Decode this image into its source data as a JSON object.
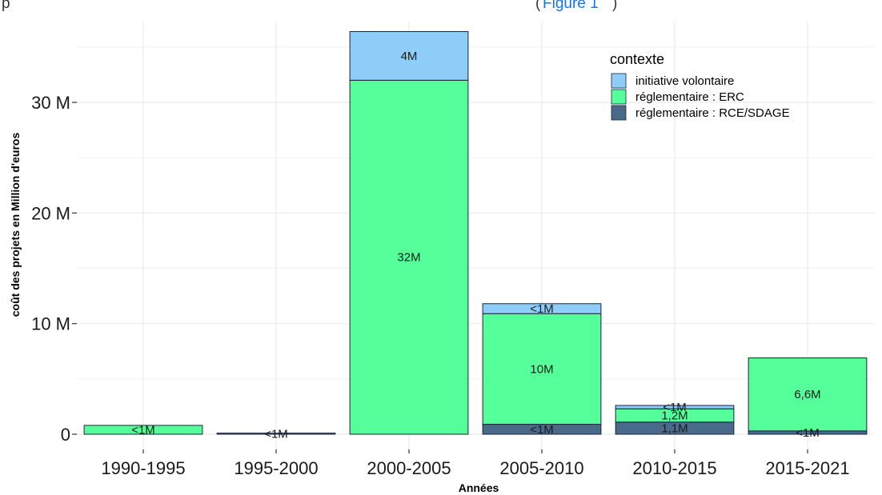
{
  "caption_fragment": {
    "text": "p",
    "link_text": "Figure 1",
    "paren_open": "(",
    "paren_close": ")",
    "link_color": "#1a73e8"
  },
  "chart_data": {
    "type": "bar",
    "stacked": true,
    "title": "",
    "xlabel": "Années",
    "ylabel": "coût des projets en Million d'euros",
    "ylim": [
      0,
      36.5
    ],
    "yticks": [
      0,
      10,
      20,
      30
    ],
    "ytick_labels": [
      "0",
      "10 M",
      "20 M",
      "30 M"
    ],
    "grid": true,
    "legend": {
      "title": "contexte",
      "position": "top-right"
    },
    "categories": [
      "1990-1995",
      "1995-2000",
      "2000-2005",
      "2005-2010",
      "2010-2015",
      "2015-2021"
    ],
    "series": [
      {
        "name": "réglementaire : RCE/SDAGE",
        "color": "#4a6a8a",
        "values": [
          0,
          0.1,
          0,
          0.9,
          1.1,
          0.3
        ],
        "labels": [
          "",
          "<1M",
          "",
          "<1M",
          "1,1M",
          "<1M"
        ]
      },
      {
        "name": "réglementaire : ERC",
        "color": "#55ff99",
        "values": [
          0.8,
          0,
          32,
          10,
          1.2,
          6.6
        ],
        "labels": [
          "<1M",
          "",
          "32M",
          "10M",
          "1,2M",
          "6,6M"
        ]
      },
      {
        "name": "initiative volontaire",
        "color": "#8ecdf7",
        "values": [
          0,
          0,
          4.4,
          0.9,
          0.3,
          0
        ],
        "labels": [
          "",
          "",
          "4M",
          "<1M",
          "<1M",
          ""
        ]
      }
    ],
    "legend_order": [
      "initiative volontaire",
      "réglementaire : ERC",
      "réglementaire : RCE/SDAGE"
    ]
  }
}
